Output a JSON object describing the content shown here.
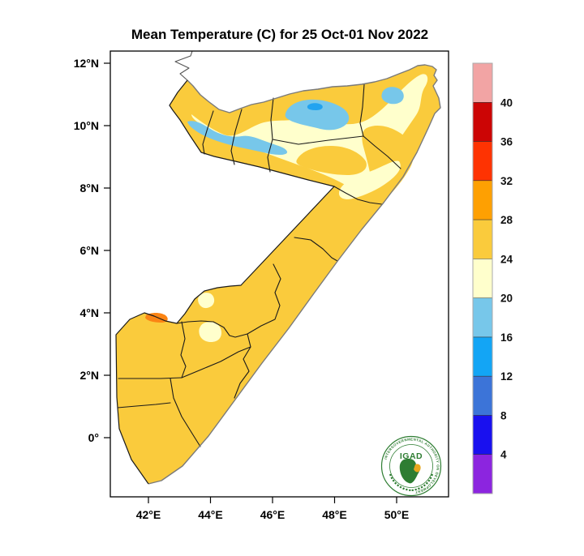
{
  "title": "Mean Temperature (C) for 25 Oct-01 Nov 2022",
  "colors": {
    "land_gold": "#FACB3C",
    "pale_yellow": "#FFFFCC",
    "light_blue": "#77C7EA",
    "mid_blue": "#22A3F0",
    "orange": "#FB8414",
    "coast_gray": "#7A7A7A",
    "border_black": "#1A1A1A",
    "logo_green": "#2E7D32",
    "logo_gold": "#E8A71E"
  },
  "axes": {
    "y_ticks": [
      {
        "label": "12°N",
        "lat": 12
      },
      {
        "label": "10°N",
        "lat": 10
      },
      {
        "label": "8°N",
        "lat": 8
      },
      {
        "label": "6°N",
        "lat": 6
      },
      {
        "label": "4°N",
        "lat": 4
      },
      {
        "label": "2°N",
        "lat": 2
      },
      {
        "label": "0°",
        "lat": 0
      }
    ],
    "x_ticks": [
      {
        "label": "42°E",
        "lon": 42
      },
      {
        "label": "44°E",
        "lon": 44
      },
      {
        "label": "46°E",
        "lon": 46
      },
      {
        "label": "48°E",
        "lon": 48
      },
      {
        "label": "50°E",
        "lon": 50
      }
    ]
  },
  "legend": {
    "segments": [
      {
        "color": "#F2A4A4",
        "range": "above 40"
      },
      {
        "color": "#CC0505",
        "range": "36-40"
      },
      {
        "color": "#FE3302",
        "range": "32-36"
      },
      {
        "color": "#FEA002",
        "range": "28-32"
      },
      {
        "color": "#FACB3C",
        "range": "24-28"
      },
      {
        "color": "#FFFFCC",
        "range": "20-24"
      },
      {
        "color": "#77C7EA",
        "range": "16-20"
      },
      {
        "color": "#13A5F5",
        "range": "12-16"
      },
      {
        "color": "#3C74D8",
        "range": "8-12"
      },
      {
        "color": "#1910EF",
        "range": "4-8"
      },
      {
        "color": "#8C25DF",
        "range": "below 4"
      }
    ],
    "boundary_labels": [
      "40",
      "36",
      "32",
      "28",
      "24",
      "20",
      "16",
      "12",
      "8",
      "4"
    ]
  },
  "logo": {
    "text": "IGAD",
    "ring_text": "INTERGOVERNMENTAL AUTHORITY ON DEVELOPMENT"
  },
  "chart_data": {
    "type": "heatmap",
    "subtype": "filled-contour temperature map",
    "title": "Mean Temperature (C) for 25 Oct-01 Nov 2022",
    "region": "Somalia (Horn of Africa)",
    "variable": "Mean Temperature (C)",
    "period": "25 Oct-01 Nov 2022",
    "lon_axis_ticks": [
      42,
      44,
      46,
      48,
      50
    ],
    "lat_axis_ticks": [
      12,
      10,
      8,
      6,
      4,
      2,
      0
    ],
    "lon_range_deg_e": [
      40.8,
      51.7
    ],
    "lat_range_deg_n": [
      -1.9,
      12.4
    ],
    "levels_c": [
      4,
      8,
      12,
      16,
      20,
      24,
      28,
      32,
      36,
      40
    ],
    "level_colors_top_to_bottom": [
      "#F2A4A4",
      "#CC0505",
      "#FE3302",
      "#FEA002",
      "#FACB3C",
      "#FFFFCC",
      "#77C7EA",
      "#13A5F5",
      "#3C74D8",
      "#1910EF",
      "#8C25DF"
    ],
    "legend_position": "right",
    "grid": false,
    "zones": [
      {
        "area": "southern and central Somalia (bulk of country)",
        "temp_c": "24-28"
      },
      {
        "area": "northern interior plateau (Somaliland / Puntland)",
        "temp_c": "20-24"
      },
      {
        "area": "northwest highland band near Hargeisa and large patch north-central",
        "temp_c": "16-20"
      },
      {
        "area": "small cores inside the northern highland patches",
        "temp_c": "12-16"
      },
      {
        "area": "small spot on western border near Mandera/Dolow (Gedo)",
        "temp_c": "28-32"
      },
      {
        "area": "north Gulf of Aden coastal strip and Nugaal valley band",
        "temp_c": "24-28"
      },
      {
        "area": "three small pale spots in south-central interior and at the central neck",
        "temp_c": "20-24"
      }
    ]
  }
}
